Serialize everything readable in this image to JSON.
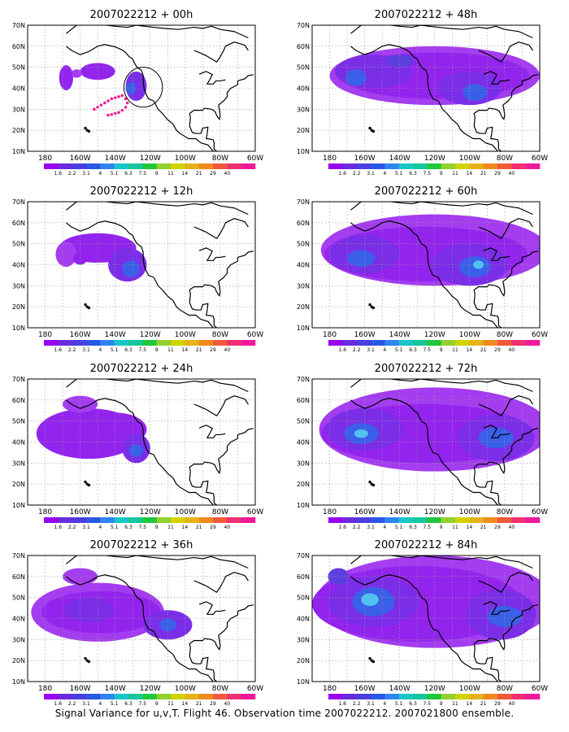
{
  "colors": {
    "colorbar": [
      "#9900ee",
      "#6a2bdf",
      "#4a3fdc",
      "#2a57e6",
      "#2f84f0",
      "#19c6c6",
      "#17c69a",
      "#1ec83a",
      "#94d02e",
      "#cfd400",
      "#e6b21a",
      "#f08a1f",
      "#f05a3a",
      "#f03070",
      "#ee1a9a"
    ],
    "fill_levels": [
      "#a43cf0",
      "#9324ee",
      "#7b2ee8",
      "#5d3fe0",
      "#3a5fe8",
      "#3e8ff2",
      "#4fc2f2"
    ],
    "track": "#ee1f8d"
  },
  "axis": {
    "lat_labels": [
      "70N",
      "60N",
      "50N",
      "40N",
      "30N",
      "20N",
      "10N"
    ],
    "lon_labels": [
      "180",
      "160W",
      "140W",
      "120W",
      "100W",
      "80W",
      "60W"
    ]
  },
  "colorbar_labels": [
    "1.6",
    "2.2",
    "3.1",
    "4",
    "5.1",
    "6.3",
    "7.5",
    "9",
    "11",
    "14",
    "21",
    "29",
    "40"
  ],
  "panels": [
    {
      "title": "2007022212 + 00h",
      "blobs": [
        {
          "lon": -128,
          "lat": 41,
          "rx": 6,
          "ry": 7,
          "lvl": 2
        },
        {
          "lon": -131,
          "lat": 40,
          "rx": 3,
          "ry": 3,
          "lvl": 4
        },
        {
          "lon": -150,
          "lat": 48,
          "rx": 10,
          "ry": 4,
          "lvl": 1
        },
        {
          "lon": -168,
          "lat": 45,
          "rx": 4,
          "ry": 6,
          "lvl": 1
        },
        {
          "lon": -162,
          "lat": 47,
          "rx": 3,
          "ry": 2,
          "lvl": 0
        }
      ],
      "track": true,
      "circle": true
    },
    {
      "title": "2007022212 + 48h",
      "blobs": [
        {
          "lon": -120,
          "lat": 46,
          "rx": 60,
          "ry": 14,
          "lvl": 0
        },
        {
          "lon": -120,
          "lat": 46,
          "rx": 54,
          "ry": 11,
          "lvl": 1
        },
        {
          "lon": -155,
          "lat": 48,
          "rx": 22,
          "ry": 8,
          "lvl": 2
        },
        {
          "lon": -100,
          "lat": 40,
          "rx": 18,
          "ry": 8,
          "lvl": 2
        },
        {
          "lon": -165,
          "lat": 45,
          "rx": 6,
          "ry": 4,
          "lvl": 4
        },
        {
          "lon": -97,
          "lat": 38,
          "rx": 7,
          "ry": 4,
          "lvl": 4
        },
        {
          "lon": -140,
          "lat": 53,
          "rx": 8,
          "ry": 3,
          "lvl": 3
        }
      ],
      "track": false,
      "circle": false
    },
    {
      "title": "2007022212 + 12h",
      "blobs": [
        {
          "lon": -150,
          "lat": 48,
          "rx": 22,
          "ry": 7,
          "lvl": 1
        },
        {
          "lon": -133,
          "lat": 40,
          "rx": 11,
          "ry": 8,
          "lvl": 2
        },
        {
          "lon": -131,
          "lat": 38,
          "rx": 5,
          "ry": 4,
          "lvl": 4
        },
        {
          "lon": -168,
          "lat": 45,
          "rx": 6,
          "ry": 6,
          "lvl": 0
        },
        {
          "lon": -160,
          "lat": 43,
          "rx": 4,
          "ry": 3,
          "lvl": 1
        }
      ],
      "track": false,
      "circle": false
    },
    {
      "title": "2007022212 + 60h",
      "blobs": [
        {
          "lon": -120,
          "lat": 47,
          "rx": 65,
          "ry": 17,
          "lvl": 0
        },
        {
          "lon": -125,
          "lat": 45,
          "rx": 58,
          "ry": 13,
          "lvl": 1
        },
        {
          "lon": -160,
          "lat": 45,
          "rx": 20,
          "ry": 9,
          "lvl": 2
        },
        {
          "lon": -100,
          "lat": 40,
          "rx": 22,
          "ry": 10,
          "lvl": 2
        },
        {
          "lon": -162,
          "lat": 43,
          "rx": 8,
          "ry": 4,
          "lvl": 4
        },
        {
          "lon": -97,
          "lat": 39,
          "rx": 9,
          "ry": 5,
          "lvl": 4
        },
        {
          "lon": -95,
          "lat": 40,
          "rx": 3,
          "ry": 2,
          "lvl": 6
        }
      ],
      "track": false,
      "circle": false
    },
    {
      "title": "2007022212 + 24h",
      "blobs": [
        {
          "lon": -155,
          "lat": 44,
          "rx": 30,
          "ry": 12,
          "lvl": 1
        },
        {
          "lon": -140,
          "lat": 46,
          "rx": 18,
          "ry": 8,
          "lvl": 1
        },
        {
          "lon": -128,
          "lat": 37,
          "rx": 8,
          "ry": 7,
          "lvl": 2
        },
        {
          "lon": -128,
          "lat": 36,
          "rx": 4,
          "ry": 3,
          "lvl": 4
        },
        {
          "lon": -160,
          "lat": 58,
          "rx": 10,
          "ry": 4,
          "lvl": 0
        }
      ],
      "track": false,
      "circle": false
    },
    {
      "title": "2007022212 + 72h",
      "blobs": [
        {
          "lon": -120,
          "lat": 46,
          "rx": 66,
          "ry": 20,
          "lvl": 0
        },
        {
          "lon": -125,
          "lat": 44,
          "rx": 60,
          "ry": 14,
          "lvl": 1
        },
        {
          "lon": -160,
          "lat": 46,
          "rx": 22,
          "ry": 10,
          "lvl": 2
        },
        {
          "lon": -85,
          "lat": 42,
          "rx": 22,
          "ry": 11,
          "lvl": 2
        },
        {
          "lon": -162,
          "lat": 44,
          "rx": 10,
          "ry": 5,
          "lvl": 4
        },
        {
          "lon": -85,
          "lat": 42,
          "rx": 10,
          "ry": 5,
          "lvl": 4
        },
        {
          "lon": -162,
          "lat": 44,
          "rx": 4,
          "ry": 2,
          "lvl": 6
        }
      ],
      "track": false,
      "circle": false
    },
    {
      "title": "2007022212 + 36h",
      "blobs": [
        {
          "lon": -150,
          "lat": 43,
          "rx": 38,
          "ry": 14,
          "lvl": 0
        },
        {
          "lon": -148,
          "lat": 43,
          "rx": 34,
          "ry": 10,
          "lvl": 1
        },
        {
          "lon": -155,
          "lat": 44,
          "rx": 14,
          "ry": 6,
          "lvl": 2
        },
        {
          "lon": -110,
          "lat": 37,
          "rx": 14,
          "ry": 7,
          "lvl": 2
        },
        {
          "lon": -110,
          "lat": 37,
          "rx": 5,
          "ry": 3,
          "lvl": 4
        },
        {
          "lon": -160,
          "lat": 60,
          "rx": 10,
          "ry": 4,
          "lvl": 0
        }
      ],
      "track": false,
      "circle": false
    },
    {
      "title": "2007022212 + 84h",
      "blobs": [
        {
          "lon": -120,
          "lat": 48,
          "rx": 68,
          "ry": 22,
          "lvl": 0
        },
        {
          "lon": -130,
          "lat": 47,
          "rx": 60,
          "ry": 18,
          "lvl": 1
        },
        {
          "lon": -155,
          "lat": 48,
          "rx": 26,
          "ry": 12,
          "lvl": 2
        },
        {
          "lon": -82,
          "lat": 42,
          "rx": 20,
          "ry": 12,
          "lvl": 2
        },
        {
          "lon": -155,
          "lat": 48,
          "rx": 12,
          "ry": 7,
          "lvl": 4
        },
        {
          "lon": -80,
          "lat": 41,
          "rx": 10,
          "ry": 5,
          "lvl": 4
        },
        {
          "lon": -157,
          "lat": 49,
          "rx": 5,
          "ry": 3,
          "lvl": 6
        },
        {
          "lon": -175,
          "lat": 60,
          "rx": 6,
          "ry": 4,
          "lvl": 3
        }
      ],
      "track": false,
      "circle": false
    }
  ],
  "footer": {
    "caption": "Signal Variance for u,v,T. Flight 46. Observation time 2007022212. 2007021800 ensemble."
  }
}
